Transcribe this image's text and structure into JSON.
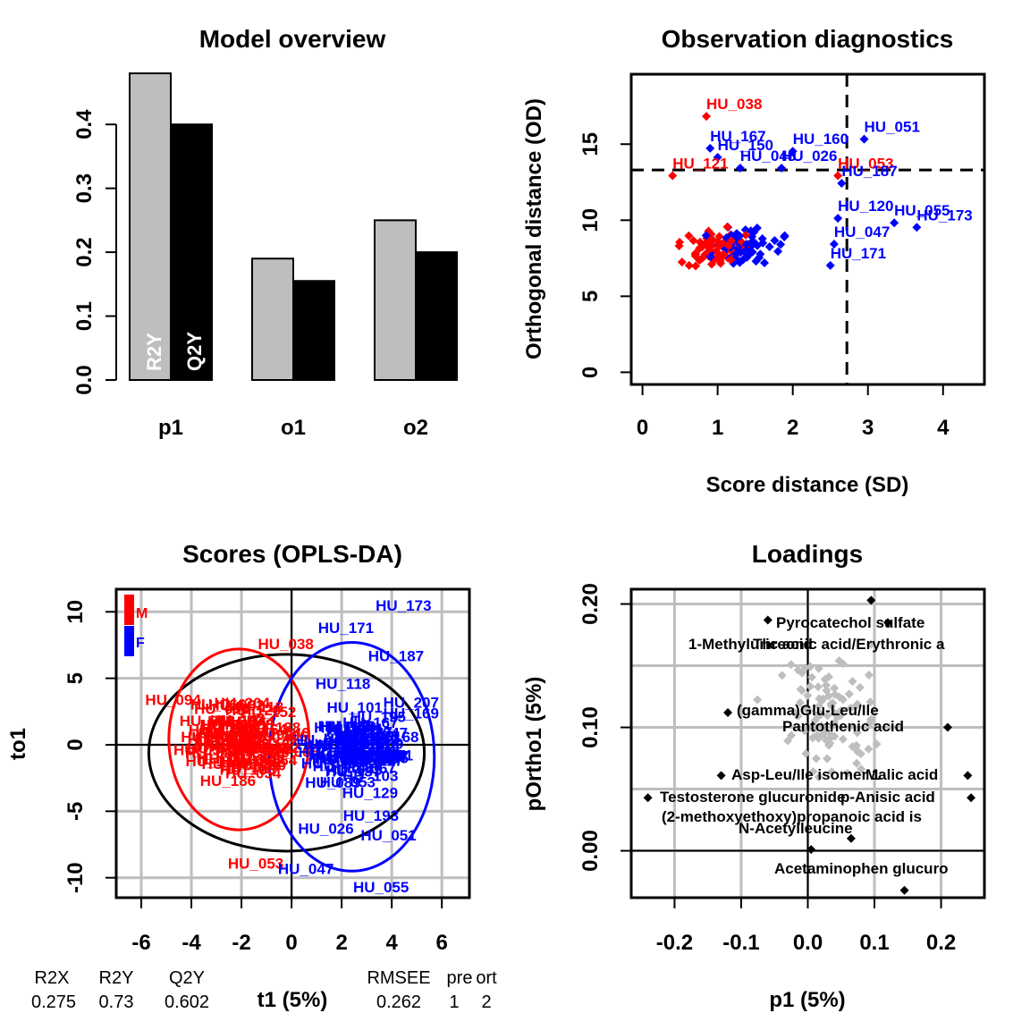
{
  "colors": {
    "M": "#ff0000",
    "F": "#0000ff",
    "R2Y": "#bebebe",
    "Q2Y": "#000000",
    "grid": "#bebebe",
    "loading_grey": "#bebebe"
  },
  "chart_data": [
    {
      "id": "overview",
      "type": "bar",
      "title": "Model overview",
      "categories": [
        "p1",
        "o1",
        "o2"
      ],
      "series": [
        {
          "name": "R2Y",
          "values": [
            0.48,
            0.19,
            0.25
          ]
        },
        {
          "name": "Q2Y",
          "values": [
            0.4,
            0.155,
            0.2
          ]
        }
      ],
      "ylim": [
        0,
        0.48
      ],
      "yticks": [
        "0.0",
        "0.1",
        "0.2",
        "0.3",
        "0.4"
      ],
      "grid": false
    },
    {
      "id": "diagnostics",
      "type": "scatter",
      "title": "Observation diagnostics",
      "xlabel": "Score distance (SD)",
      "ylabel": "Orthogonal distance (OD)",
      "xlim": [
        -0.15,
        4.55
      ],
      "ylim": [
        -0.8,
        19.6
      ],
      "xticks": [
        "0",
        "1",
        "2",
        "3",
        "4"
      ],
      "yticks": [
        "0",
        "5",
        "10",
        "15"
      ],
      "sd_cutoff": 2.72,
      "od_cutoff": 13.3,
      "labeled_points": [
        {
          "label": "HU_038",
          "x": 0.85,
          "y": 17.3,
          "group": "M"
        },
        {
          "label": "HU_167",
          "x": 0.9,
          "y": 15.2,
          "group": "F"
        },
        {
          "label": "HU_150",
          "x": 1.0,
          "y": 14.6,
          "group": "F"
        },
        {
          "label": "HU_160",
          "x": 2.0,
          "y": 15.0,
          "group": "F"
        },
        {
          "label": "HU_051",
          "x": 2.95,
          "y": 15.8,
          "group": "F"
        },
        {
          "label": "HU_048",
          "x": 1.3,
          "y": 13.9,
          "group": "F"
        },
        {
          "label": "HU_026",
          "x": 1.85,
          "y": 13.9,
          "group": "F"
        },
        {
          "label": "HU_121",
          "x": 0.4,
          "y": 13.4,
          "group": "M"
        },
        {
          "label": "HU_053",
          "x": 2.6,
          "y": 13.4,
          "group": "M"
        },
        {
          "label": "HU_187",
          "x": 2.65,
          "y": 12.9,
          "group": "F"
        },
        {
          "label": "HU_120",
          "x": 2.6,
          "y": 10.6,
          "group": "F"
        },
        {
          "label": "HU_055",
          "x": 3.35,
          "y": 10.3,
          "group": "F"
        },
        {
          "label": "HU_173",
          "x": 3.65,
          "y": 10.0,
          "group": "F"
        },
        {
          "label": "HU_047",
          "x": 2.55,
          "y": 8.9,
          "group": "F"
        },
        {
          "label": "HU_171",
          "x": 2.5,
          "y": 7.5,
          "group": "F"
        }
      ]
    },
    {
      "id": "scores",
      "type": "scatter",
      "title": "Scores (OPLS-DA)",
      "xlabel": "t1 (5%)",
      "ylabel": "to1",
      "xlim": [
        -7.0,
        7.1
      ],
      "ylim": [
        -11.5,
        11.7
      ],
      "xticks": [
        "-6",
        "-4",
        "-2",
        "0",
        "2",
        "4",
        "6"
      ],
      "yticks": [
        "-10",
        "-5",
        "0",
        "5",
        "10"
      ],
      "grid": true,
      "legend": [
        {
          "name": "M"
        },
        {
          "name": "F"
        }
      ],
      "legend_position": "top-left",
      "labeled_points": [
        {
          "label": "HU_173",
          "x": 4.5,
          "y": 10.5,
          "group": "F"
        },
        {
          "label": "HU_171",
          "x": 2.2,
          "y": 8.8,
          "group": "F"
        },
        {
          "label": "HU_187",
          "x": 4.2,
          "y": 6.7,
          "group": "F"
        },
        {
          "label": "HU_038",
          "x": -0.2,
          "y": 7.6,
          "group": "M"
        },
        {
          "label": "HU_094",
          "x": -4.7,
          "y": 3.4,
          "group": "M"
        },
        {
          "label": "HU_118",
          "x": 2.1,
          "y": 4.6,
          "group": "F"
        },
        {
          "label": "HU_207",
          "x": 4.8,
          "y": 3.2,
          "group": "F"
        },
        {
          "label": "HU_169",
          "x": 4.8,
          "y": 2.4,
          "group": "F"
        },
        {
          "label": "HU_168",
          "x": 4.0,
          "y": 0.6,
          "group": "F"
        },
        {
          "label": "HU_158",
          "x": 3.5,
          "y": -0.8,
          "group": "F"
        },
        {
          "label": "HU_193",
          "x": 3.2,
          "y": -5.3,
          "group": "F"
        },
        {
          "label": "HU_026",
          "x": 1.4,
          "y": -6.3,
          "group": "F"
        },
        {
          "label": "HU_051",
          "x": 3.9,
          "y": -6.8,
          "group": "F"
        },
        {
          "label": "HU_053",
          "x": -1.4,
          "y": -8.9,
          "group": "M"
        },
        {
          "label": "HU_047",
          "x": 0.6,
          "y": -9.3,
          "group": "F"
        },
        {
          "label": "HU_055",
          "x": 3.6,
          "y": -10.7,
          "group": "F"
        }
      ],
      "ellipses": [
        {
          "name": "all",
          "cx": -0.2,
          "cy": -0.6,
          "rx": 5.5,
          "ry": 7.4
        },
        {
          "name": "M",
          "cx": -2.1,
          "cy": 0.4,
          "rx": 2.8,
          "ry": 6.8
        },
        {
          "name": "F",
          "cx": 2.4,
          "cy": -0.9,
          "rx": 3.3,
          "ry": 8.6
        }
      ]
    },
    {
      "id": "loadings",
      "type": "scatter",
      "title": "Loadings",
      "xlabel": "p1 (5%)",
      "ylabel": "pOrtho1 (5%)",
      "xlim": [
        -0.265,
        0.265
      ],
      "ylim": [
        -0.038,
        0.212
      ],
      "xticks": [
        "-0.2",
        "-0.1",
        "0.0",
        "0.1",
        "0.2"
      ],
      "yticks": [
        "0.00",
        "0.10",
        "0.20"
      ],
      "grid": true,
      "labeled_points": [
        {
          "label": "Pyrocatechol sulfate",
          "x": 0.12,
          "y": 0.185
        },
        {
          "label": "1-Methyluric acid",
          "x": 0.095,
          "y": 0.203
        },
        {
          "label": "Threonic acid/Erythronic a",
          "x": -0.06,
          "y": 0.187
        },
        {
          "label": "(gamma)Glu-Leu/Ile",
          "x": -0.12,
          "y": 0.112
        },
        {
          "label": "Pantothenic acid",
          "x": 0.21,
          "y": 0.1
        },
        {
          "label": "Asp-Leu/Ile isomer 1",
          "x": -0.13,
          "y": 0.061
        },
        {
          "label": "Malic acid",
          "x": 0.24,
          "y": 0.061
        },
        {
          "label": "Testosterone glucuronide",
          "x": -0.24,
          "y": 0.043
        },
        {
          "label": "p-Anisic acid",
          "x": 0.245,
          "y": 0.043
        },
        {
          "label": "(2-methoxyethoxy)propanoic acid is",
          "x": 0.065,
          "y": 0.01
        },
        {
          "label": "N-Acetylleucine",
          "x": 0.005,
          "y": 0.001
        },
        {
          "label": "Acetaminophen glucuro",
          "x": 0.145,
          "y": -0.032
        }
      ]
    }
  ],
  "summary": {
    "headers": [
      "R2X",
      "R2Y",
      "Q2Y",
      "RMSEE",
      "pre",
      "ort"
    ],
    "values": [
      "0.275",
      "0.73",
      "0.602",
      "0.262",
      "1",
      "2"
    ]
  }
}
